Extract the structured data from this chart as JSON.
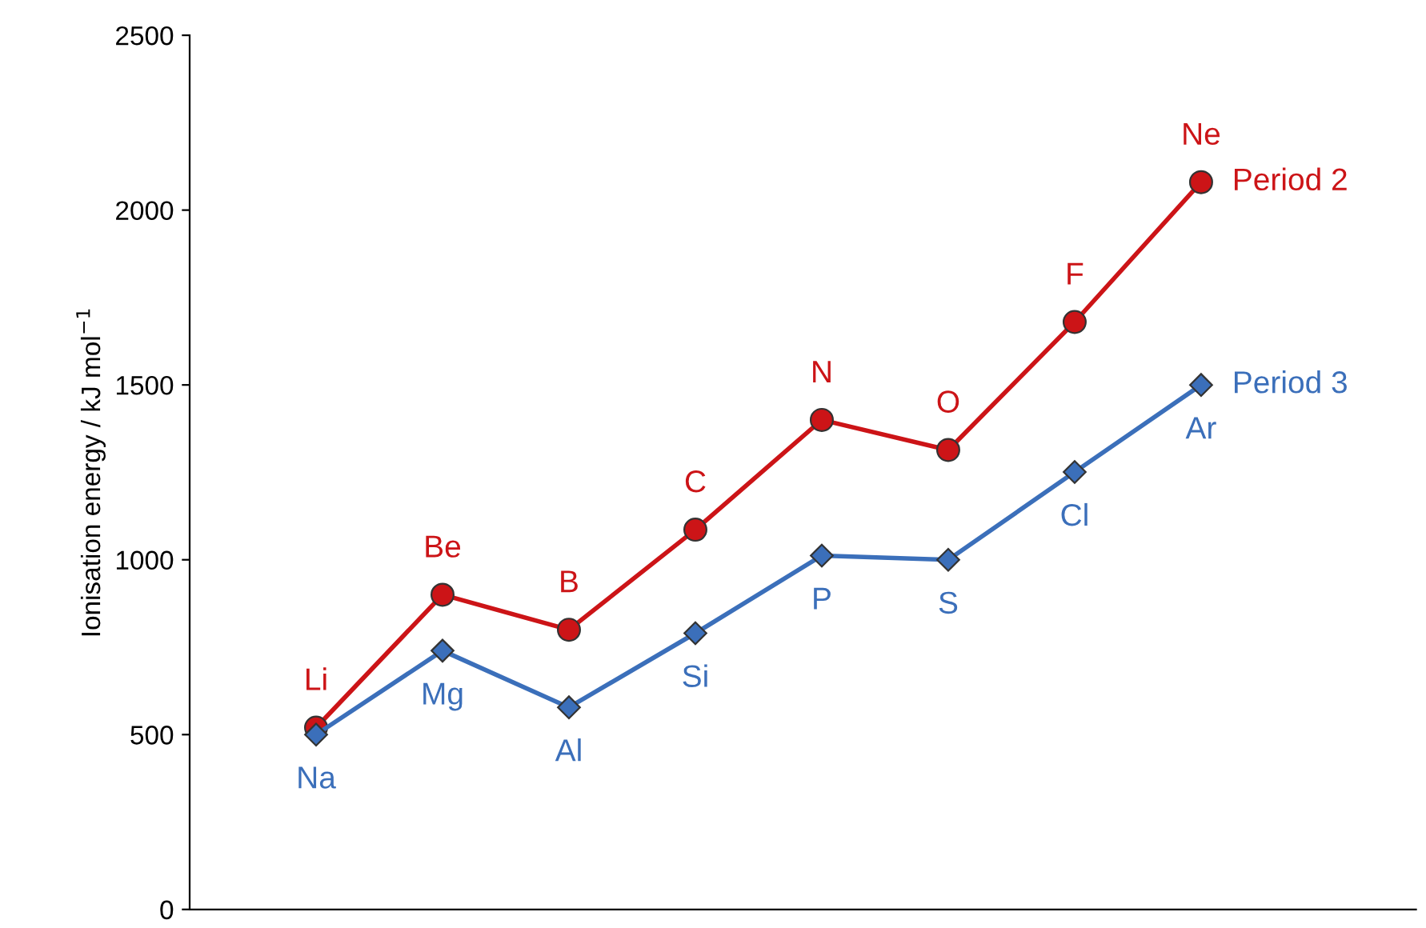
{
  "chart_data": {
    "type": "line",
    "ylabel": "Ionisation energy / kJ mol$^{−1}$",
    "categories": [
      null,
      null,
      null,
      null,
      null,
      null,
      null,
      null
    ],
    "series": [
      {
        "name": "Period 2",
        "color": "#cc1417",
        "marker": "circle",
        "values": [
          520,
          900,
          800,
          1086,
          1400,
          1314,
          1680,
          2080
        ],
        "value_labels": [
          "Li",
          "Be",
          "B",
          "C",
          "N",
          "O",
          "F",
          "Ne"
        ]
      },
      {
        "name": "Period 3",
        "color": "#3b6fba",
        "marker": "diamond",
        "values": [
          500,
          740,
          578,
          790,
          1012,
          1000,
          1251,
          1500
        ],
        "value_labels": [
          "Na",
          "Mg",
          "Al",
          "Si",
          "P",
          "S",
          "Cl",
          "Ar"
        ]
      }
    ],
    "ylim": [
      0,
      2500
    ],
    "yticks": [
      0,
      500,
      1000,
      1500,
      2000,
      2500
    ],
    "tick_labels": "y",
    "grid": false,
    "legend": false,
    "line_style": "solid"
  }
}
